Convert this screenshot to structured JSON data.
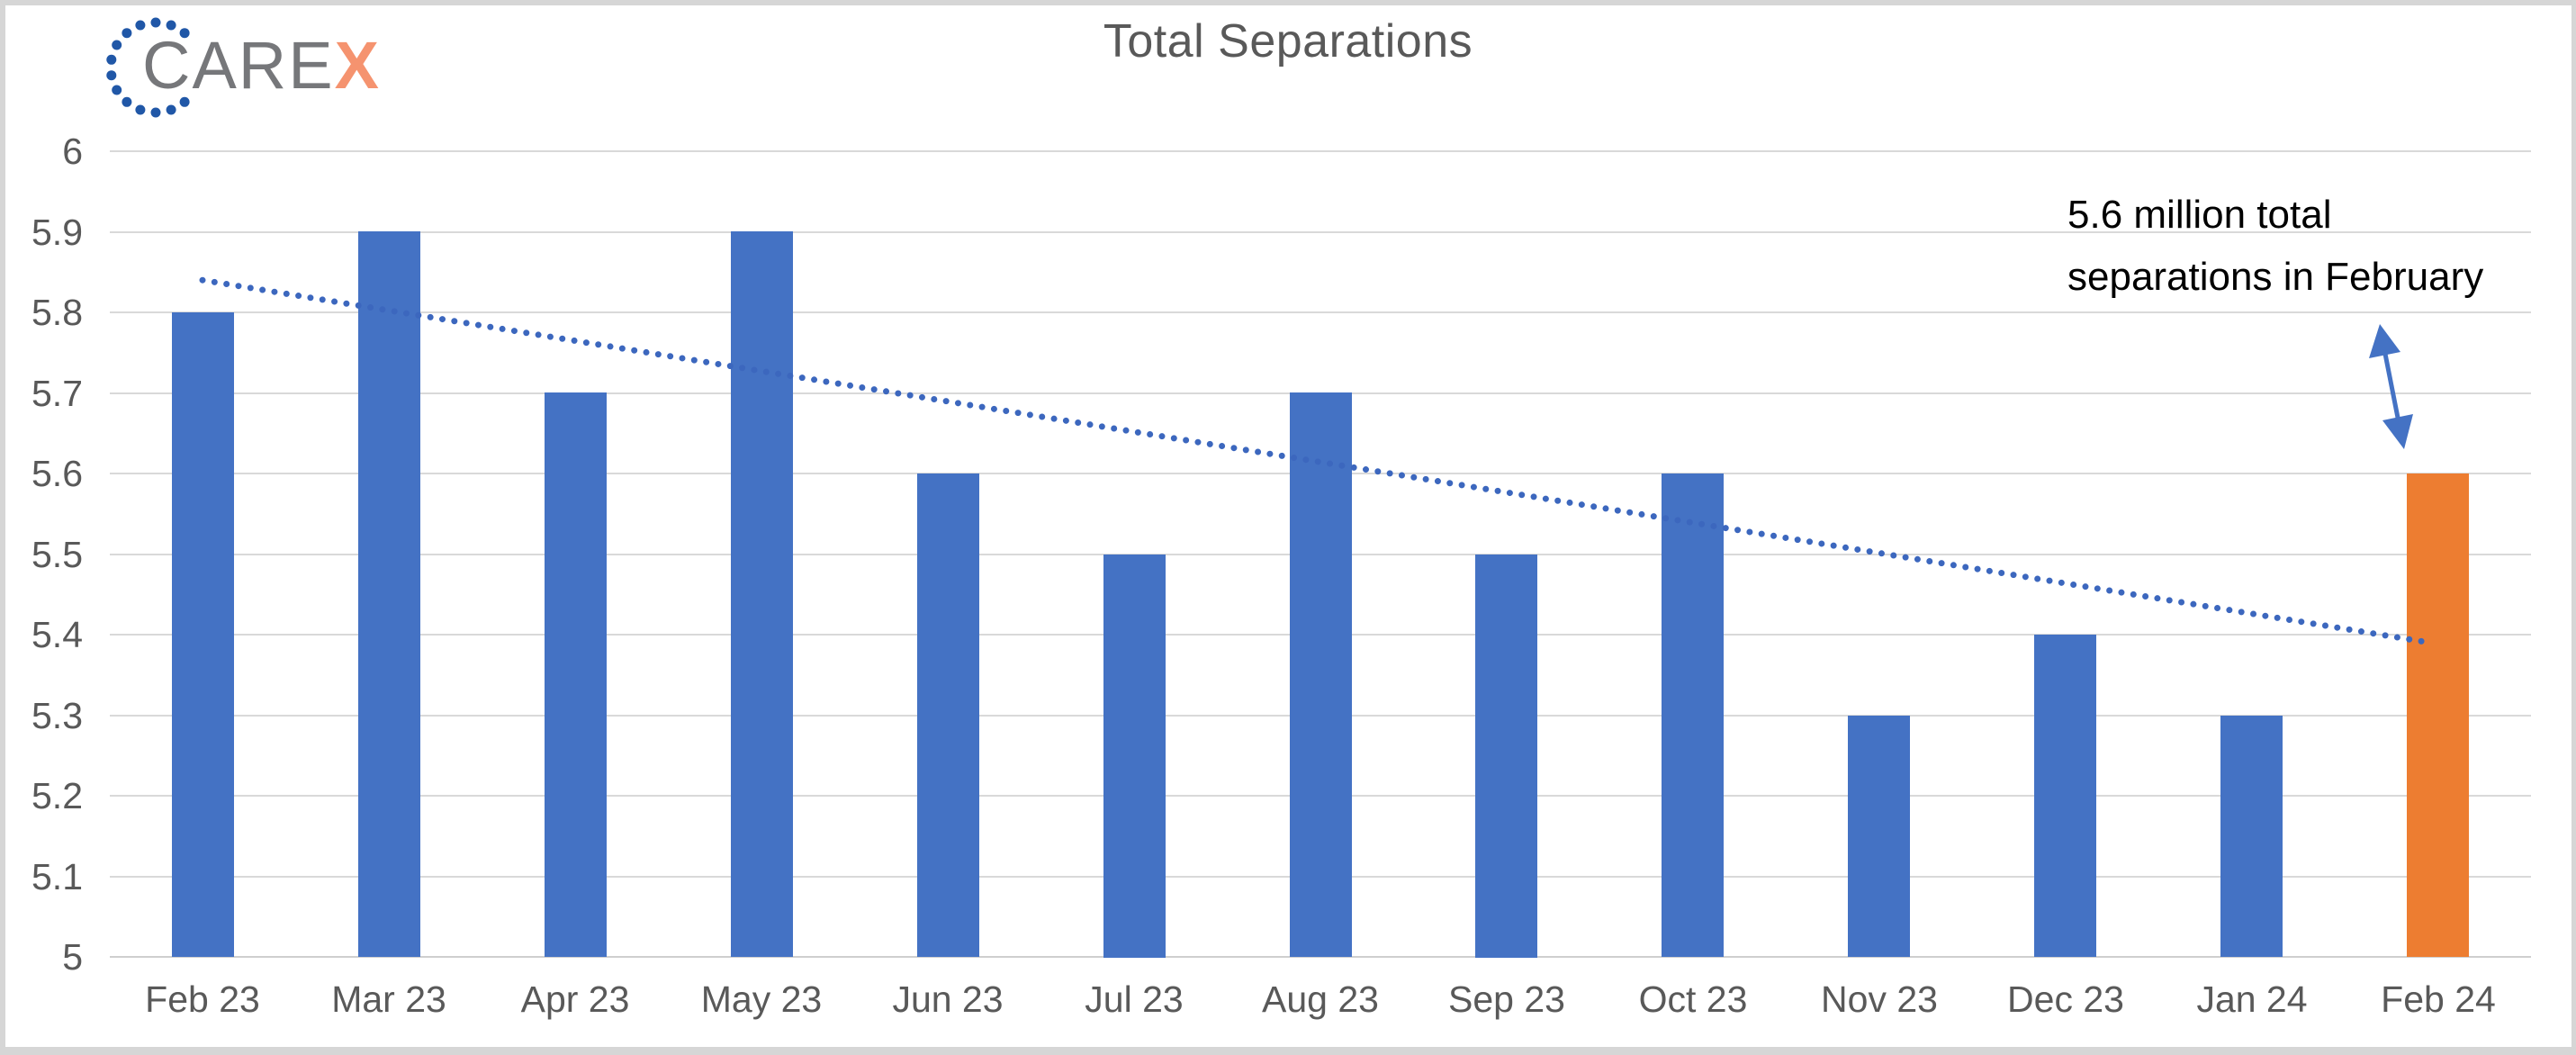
{
  "page": {
    "background_color": "#d6d6d6",
    "panel_color": "#ffffff"
  },
  "logo": {
    "text_main": "CARE",
    "text_accent": "X",
    "text_color": "#76777a",
    "accent_color": "#f5936f",
    "dot_color": "#2057a7"
  },
  "header": {
    "title": "Total Separations",
    "title_color": "#595959"
  },
  "annotation": {
    "line1": "5.6 million total",
    "line2": "separations in February",
    "text_color": "#000000",
    "arrow_color": "#4472c4"
  },
  "chart_data": {
    "type": "bar",
    "title": "Total Separations",
    "categories": [
      "Feb 23",
      "Mar 23",
      "Apr 23",
      "May 23",
      "Jun 23",
      "Jul 23",
      "Aug 23",
      "Sep 23",
      "Oct 23",
      "Nov 23",
      "Dec 23",
      "Jan 24",
      "Feb 24"
    ],
    "values": [
      5.8,
      5.9,
      5.7,
      5.9,
      5.6,
      5.5,
      5.7,
      5.5,
      5.6,
      5.3,
      5.4,
      5.3,
      5.6
    ],
    "highlight_index": 12,
    "bar_color_default": "#4472c4",
    "bar_color_highlight": "#ed7d31",
    "xlabel": "",
    "ylabel": "",
    "ylim": [
      5,
      6
    ],
    "y_ticks": [
      {
        "label": "6",
        "value": 6.0
      },
      {
        "label": "5.9",
        "value": 5.9
      },
      {
        "label": "5.8",
        "value": 5.8
      },
      {
        "label": "5.7",
        "value": 5.7
      },
      {
        "label": "5.6",
        "value": 5.6
      },
      {
        "label": "5.5",
        "value": 5.5
      },
      {
        "label": "5.4",
        "value": 5.4
      },
      {
        "label": "5.3",
        "value": 5.3
      },
      {
        "label": "5.2",
        "value": 5.2
      },
      {
        "label": "5.1",
        "value": 5.1
      },
      {
        "label": "5",
        "value": 5.0
      }
    ],
    "grid": "horizontal",
    "gridline_color": "#d9d9d9",
    "baseline_color": "#cfcfcf",
    "axis_label_color": "#595959",
    "legend": "none",
    "trendline": {
      "style": "dotted",
      "color": "#3c67be",
      "start_value": 5.84,
      "end_value": 5.39
    }
  }
}
